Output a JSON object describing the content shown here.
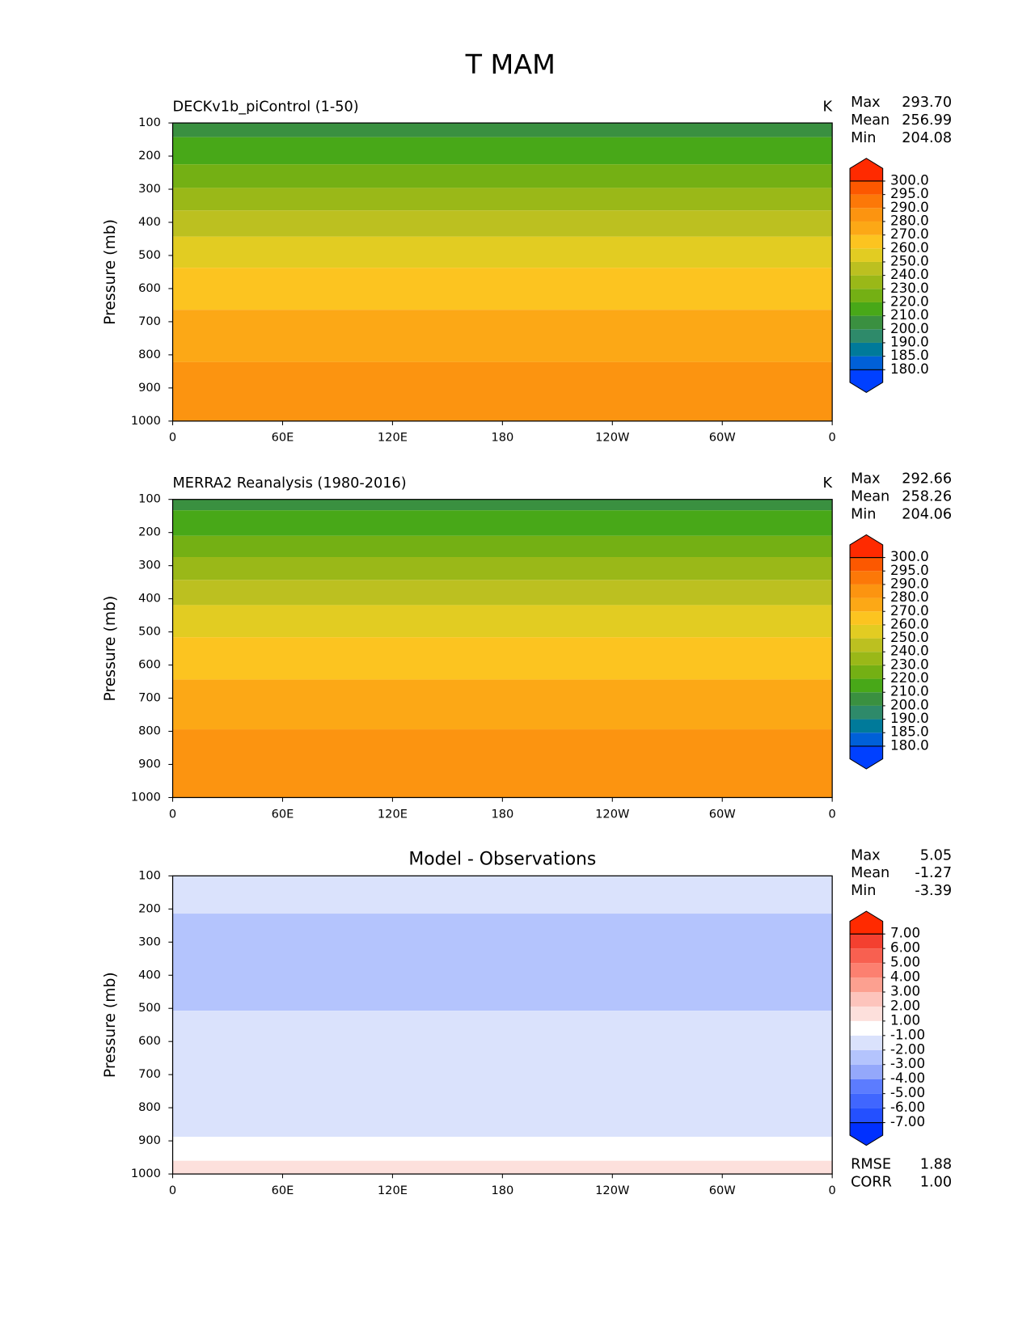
{
  "title": "T MAM",
  "chart_data": [
    {
      "type": "contour",
      "title": "DECKv1b_piControl (1-50)",
      "title_loc": "left",
      "units": "K",
      "y_label": "Pressure (mb)",
      "xlim": [
        0,
        360
      ],
      "xticks": [
        {
          "value": 0,
          "label": "0"
        },
        {
          "value": 60,
          "label": "60E"
        },
        {
          "value": 120,
          "label": "120E"
        },
        180,
        {
          "value": 240,
          "label": "120W"
        },
        {
          "value": 300,
          "label": "60W"
        },
        {
          "value": 360,
          "label": "0"
        }
      ],
      "ylim": [
        1000,
        100
      ],
      "yticks": [
        100,
        200,
        300,
        400,
        500,
        600,
        700,
        800,
        900,
        1000
      ],
      "stats": [
        {
          "name": "Max",
          "value": {
            "value": 293.7,
            "label": "293.70"
          }
        },
        {
          "name": "Mean",
          "value": 256.99
        },
        {
          "name": "Min",
          "value": 204.08
        }
      ],
      "colorbar": {
        "levels": [
          {
            "value": 180,
            "label": "180.0"
          },
          {
            "value": 185,
            "label": "185.0"
          },
          {
            "value": 190,
            "label": "190.0"
          },
          {
            "value": 200,
            "label": "200.0"
          },
          {
            "value": 210,
            "label": "210.0"
          },
          {
            "value": 220,
            "label": "220.0"
          },
          {
            "value": 230,
            "label": "230.0"
          },
          {
            "value": 240,
            "label": "240.0"
          },
          {
            "value": 250,
            "label": "250.0"
          },
          {
            "value": 260,
            "label": "260.0"
          },
          {
            "value": 270,
            "label": "270.0"
          },
          {
            "value": 280,
            "label": "280.0"
          },
          {
            "value": 290,
            "label": "290.0"
          },
          {
            "value": 295,
            "label": "295.0"
          },
          {
            "value": 300,
            "label": "300.0"
          }
        ],
        "colors": [
          "#0040ff",
          "#0060d8",
          "#007a9a",
          "#2e8a6a",
          "#3a9040",
          "#48a818",
          "#74b014",
          "#9ab818",
          "#bcc020",
          "#e2cc22",
          "#fcc420",
          "#fca816",
          "#fc9410",
          "#fc7808",
          "#fc5800",
          "#ff2a00"
        ]
      },
      "bands": [
        {
          "from": 100,
          "to": 143,
          "color": "#3a9040"
        },
        {
          "from": 143,
          "to": 225,
          "color": "#48a818"
        },
        {
          "from": 225,
          "to": 296,
          "color": "#74b014"
        },
        {
          "from": 296,
          "to": 364,
          "color": "#9ab818"
        },
        {
          "from": 364,
          "to": 443,
          "color": "#bcc020"
        },
        {
          "from": 443,
          "to": 537,
          "color": "#e2cc22"
        },
        {
          "from": 537,
          "to": 664,
          "color": "#fcc420"
        },
        {
          "from": 664,
          "to": 822,
          "color": "#fca816"
        },
        {
          "from": 822,
          "to": 1000,
          "color": "#fc9410"
        }
      ]
    },
    {
      "type": "contour",
      "title": "MERRA2 Reanalysis (1980-2016)",
      "title_loc": "left",
      "units": "K",
      "y_label": "Pressure (mb)",
      "xlim": [
        0,
        360
      ],
      "xticks": [
        {
          "value": 0,
          "label": "0"
        },
        {
          "value": 60,
          "label": "60E"
        },
        {
          "value": 120,
          "label": "120E"
        },
        180,
        {
          "value": 240,
          "label": "120W"
        },
        {
          "value": 300,
          "label": "60W"
        },
        {
          "value": 360,
          "label": "0"
        }
      ],
      "ylim": [
        1000,
        100
      ],
      "yticks": [
        100,
        200,
        300,
        400,
        500,
        600,
        700,
        800,
        900,
        1000
      ],
      "stats": [
        {
          "name": "Max",
          "value": 292.66
        },
        {
          "name": "Mean",
          "value": 258.26
        },
        {
          "name": "Min",
          "value": 204.06
        }
      ],
      "colorbar": {
        "levels": [
          {
            "value": 180,
            "label": "180.0"
          },
          {
            "value": 185,
            "label": "185.0"
          },
          {
            "value": 190,
            "label": "190.0"
          },
          {
            "value": 200,
            "label": "200.0"
          },
          {
            "value": 210,
            "label": "210.0"
          },
          {
            "value": 220,
            "label": "220.0"
          },
          {
            "value": 230,
            "label": "230.0"
          },
          {
            "value": 240,
            "label": "240.0"
          },
          {
            "value": 250,
            "label": "250.0"
          },
          {
            "value": 260,
            "label": "260.0"
          },
          {
            "value": 270,
            "label": "270.0"
          },
          {
            "value": 280,
            "label": "280.0"
          },
          {
            "value": 290,
            "label": "290.0"
          },
          {
            "value": 295,
            "label": "295.0"
          },
          {
            "value": 300,
            "label": "300.0"
          }
        ],
        "colors": [
          "#0040ff",
          "#0060d8",
          "#007a9a",
          "#2e8a6a",
          "#3a9040",
          "#48a818",
          "#74b014",
          "#9ab818",
          "#bcc020",
          "#e2cc22",
          "#fcc420",
          "#fca816",
          "#fc9410",
          "#fc7808",
          "#fc5800",
          "#ff2a00"
        ]
      },
      "bands": [
        {
          "from": 100,
          "to": 133,
          "color": "#3a9040"
        },
        {
          "from": 133,
          "to": 210,
          "color": "#48a818"
        },
        {
          "from": 210,
          "to": 274,
          "color": "#74b014"
        },
        {
          "from": 274,
          "to": 343,
          "color": "#9ab818"
        },
        {
          "from": 343,
          "to": 419,
          "color": "#bcc020"
        },
        {
          "from": 419,
          "to": 516,
          "color": "#e2cc22"
        },
        {
          "from": 516,
          "to": 644,
          "color": "#fcc420"
        },
        {
          "from": 644,
          "to": 794,
          "color": "#fca816"
        },
        {
          "from": 794,
          "to": 1000,
          "color": "#fc9410"
        }
      ]
    },
    {
      "type": "contour",
      "title": "Model - Observations",
      "title_loc": "center",
      "y_label": "Pressure (mb)",
      "xlim": [
        0,
        360
      ],
      "xticks": [
        {
          "value": 0,
          "label": "0"
        },
        {
          "value": 60,
          "label": "60E"
        },
        {
          "value": 120,
          "label": "120E"
        },
        180,
        {
          "value": 240,
          "label": "120W"
        },
        {
          "value": 300,
          "label": "60W"
        },
        {
          "value": 360,
          "label": "0"
        }
      ],
      "ylim": [
        1000,
        100
      ],
      "yticks": [
        100,
        200,
        300,
        400,
        500,
        600,
        700,
        800,
        900,
        1000
      ],
      "stats": [
        {
          "name": "Max",
          "value": 5.05
        },
        {
          "name": "Mean",
          "value": -1.27
        },
        {
          "name": "Min",
          "value": -3.39
        }
      ],
      "stats_bottom": [
        {
          "name": "RMSE",
          "value": 1.88
        },
        {
          "name": "CORR",
          "value": {
            "value": 1,
            "label": "1.00"
          }
        }
      ],
      "colorbar": {
        "levels": [
          {
            "value": -7,
            "label": "-7.00"
          },
          {
            "value": -6,
            "label": "-6.00"
          },
          {
            "value": -5,
            "label": "-5.00"
          },
          {
            "value": -4,
            "label": "-4.00"
          },
          {
            "value": -3,
            "label": "-3.00"
          },
          {
            "value": -2,
            "label": "-2.00"
          },
          {
            "value": -1,
            "label": "-1.00"
          },
          {
            "value": 1,
            "label": "1.00"
          },
          {
            "value": 2,
            "label": "2.00"
          },
          {
            "value": 3,
            "label": "3.00"
          },
          {
            "value": 4,
            "label": "4.00"
          },
          {
            "value": 5,
            "label": "5.00"
          },
          {
            "value": 6,
            "label": "6.00"
          },
          {
            "value": 7,
            "label": "7.00"
          }
        ],
        "colors": [
          "#0030ff",
          "#2450ff",
          "#4066ff",
          "#5c7cff",
          "#94a8fb",
          "#b4c4fd",
          "#dae2fc",
          "#ffffff",
          "#fde0dc",
          "#fdc4bc",
          "#fca090",
          "#fc8070",
          "#f86050",
          "#f44030",
          "#ff2a00"
        ]
      },
      "bands": [
        {
          "from": 100,
          "to": 214,
          "color": "#dae2fc"
        },
        {
          "from": 214,
          "to": 507,
          "color": "#b4c4fd"
        },
        {
          "from": 507,
          "to": 888,
          "color": "#dae2fc"
        },
        {
          "from": 888,
          "to": 960,
          "color": "#ffffff"
        },
        {
          "from": 960,
          "to": 1000,
          "color": "#fde0dc"
        }
      ]
    }
  ]
}
